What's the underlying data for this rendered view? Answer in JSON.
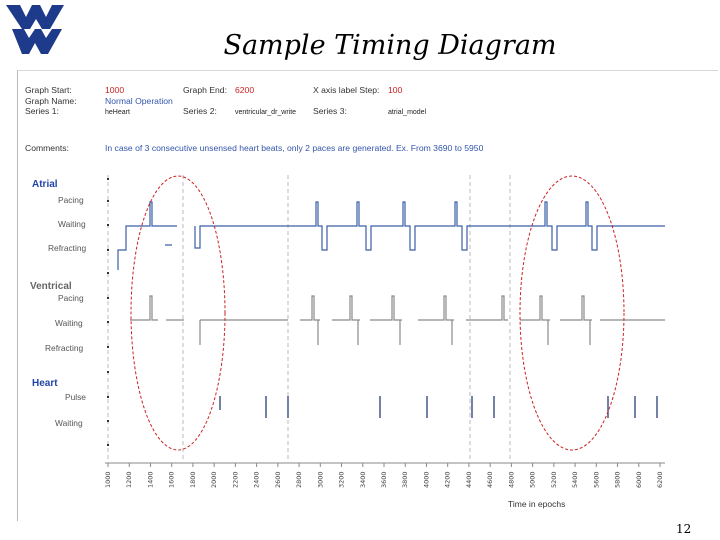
{
  "slide": {
    "title": "Sample Timing Diagram",
    "page_number": "12"
  },
  "info": {
    "graph_start_label": "Graph Start:",
    "graph_start_value": "1000",
    "graph_end_label": "Graph End:",
    "graph_end_value": "6200",
    "xaxis_step_label": "X axis label Step:",
    "xaxis_step_value": "100",
    "graph_name_label": "Graph Name:",
    "graph_name_value": "Normal Operation",
    "series1_label": "Series 1:",
    "series1_value": "heHeart",
    "series2_label": "Series 2:",
    "series2_value": "ventricular_dr_write",
    "series3_label": "Series 3:",
    "series3_value": "atrial_model",
    "comments_label": "Comments:",
    "comments_value": "In case of 3 consecutive unsensed heart beats, only 2 paces are generated. Ex. From 3690 to 5950"
  },
  "sections": [
    {
      "name": "Atrial",
      "color": "#2244aa",
      "rows": [
        "Pacing",
        "Waiting",
        "Refracting"
      ]
    },
    {
      "name": "Ventrical",
      "color": "#666666",
      "rows": [
        "Pacing",
        "Waiting",
        "Refracting"
      ]
    },
    {
      "name": "Heart",
      "color": "#2244aa",
      "rows": [
        "Pulse",
        "Waiting"
      ]
    }
  ],
  "x_axis": {
    "label": "Time in epochs",
    "ticks": [
      "1000",
      "1200",
      "1400",
      "1600",
      "1800",
      "2000",
      "2200",
      "2400",
      "2600",
      "2800",
      "3000",
      "3200",
      "3400",
      "3600",
      "3800",
      "4000",
      "4200",
      "4400",
      "4600",
      "4800",
      "5000",
      "5200",
      "5400",
      "5600",
      "5800",
      "6000",
      "6200"
    ]
  },
  "colors": {
    "atrial": "#3a5fa8",
    "ventrical": "#8a8a8a",
    "heart": "#2a3f7a",
    "ellipse": "#cc2222",
    "dashed": "#bbbbbb"
  }
}
